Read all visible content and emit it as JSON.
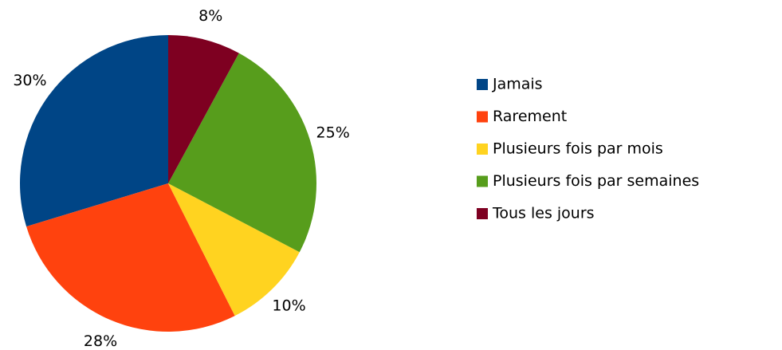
{
  "chart_data": {
    "type": "pie",
    "categories": [
      "Jamais",
      "Rarement",
      "Plusieurs fois par mois",
      "Plusieurs fois par semaines",
      "Tous les jours"
    ],
    "values": [
      30,
      28,
      10,
      25,
      8
    ],
    "value_labels": [
      "30%",
      "28%",
      "10%",
      "25%",
      "8%"
    ],
    "colors": [
      "#004586",
      "#ff420e",
      "#ffd320",
      "#579d1c",
      "#7e0021"
    ],
    "legend": "right"
  }
}
